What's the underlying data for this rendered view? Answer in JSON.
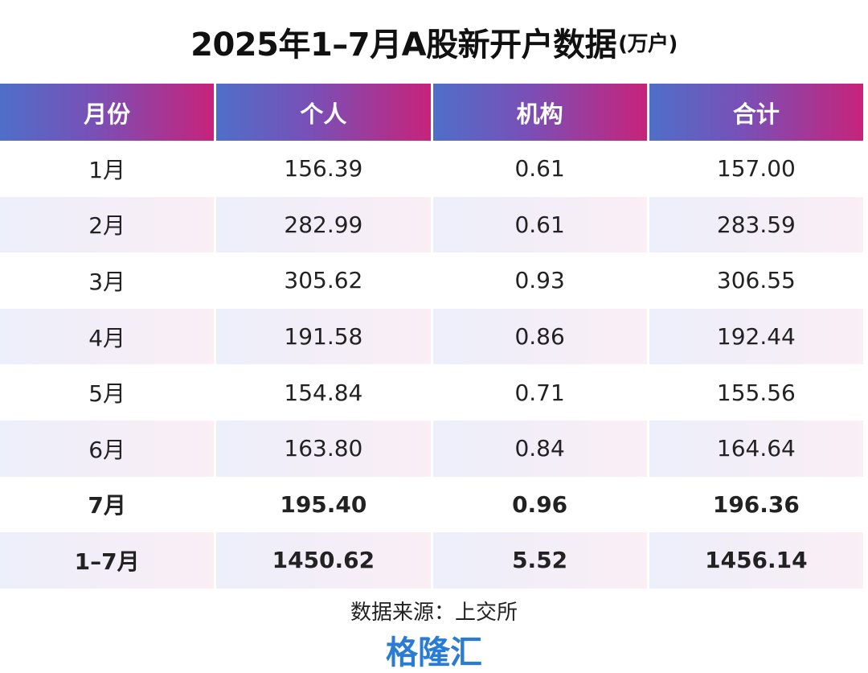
{
  "header": {
    "title": "2025年1–7月A股新开户数据",
    "unit": "(万户)"
  },
  "colors": {
    "header_gradient_start": "#4f6fc8",
    "header_gradient_end": "#c7237a",
    "brand": "#2a7bd6"
  },
  "chart_data": {
    "type": "table",
    "title": "2025年1–7月A股新开户数据(万户)",
    "columns": [
      "月份",
      "个人",
      "机构",
      "合计"
    ],
    "rows": [
      [
        "1月",
        "156.39",
        "0.61",
        "157.00"
      ],
      [
        "2月",
        "282.99",
        "0.61",
        "283.59"
      ],
      [
        "3月",
        "305.62",
        "0.93",
        "306.55"
      ],
      [
        "4月",
        "191.58",
        "0.86",
        "192.44"
      ],
      [
        "5月",
        "154.84",
        "0.71",
        "155.56"
      ],
      [
        "6月",
        "163.80",
        "0.84",
        "164.64"
      ],
      [
        "7月",
        "195.40",
        "0.96",
        "196.36"
      ],
      [
        "1–7月",
        "1450.62",
        "5.52",
        "1456.14"
      ]
    ],
    "bold_rows": [
      6,
      7
    ]
  },
  "footer": {
    "source": "数据来源：上交所",
    "brand": "格隆汇"
  }
}
